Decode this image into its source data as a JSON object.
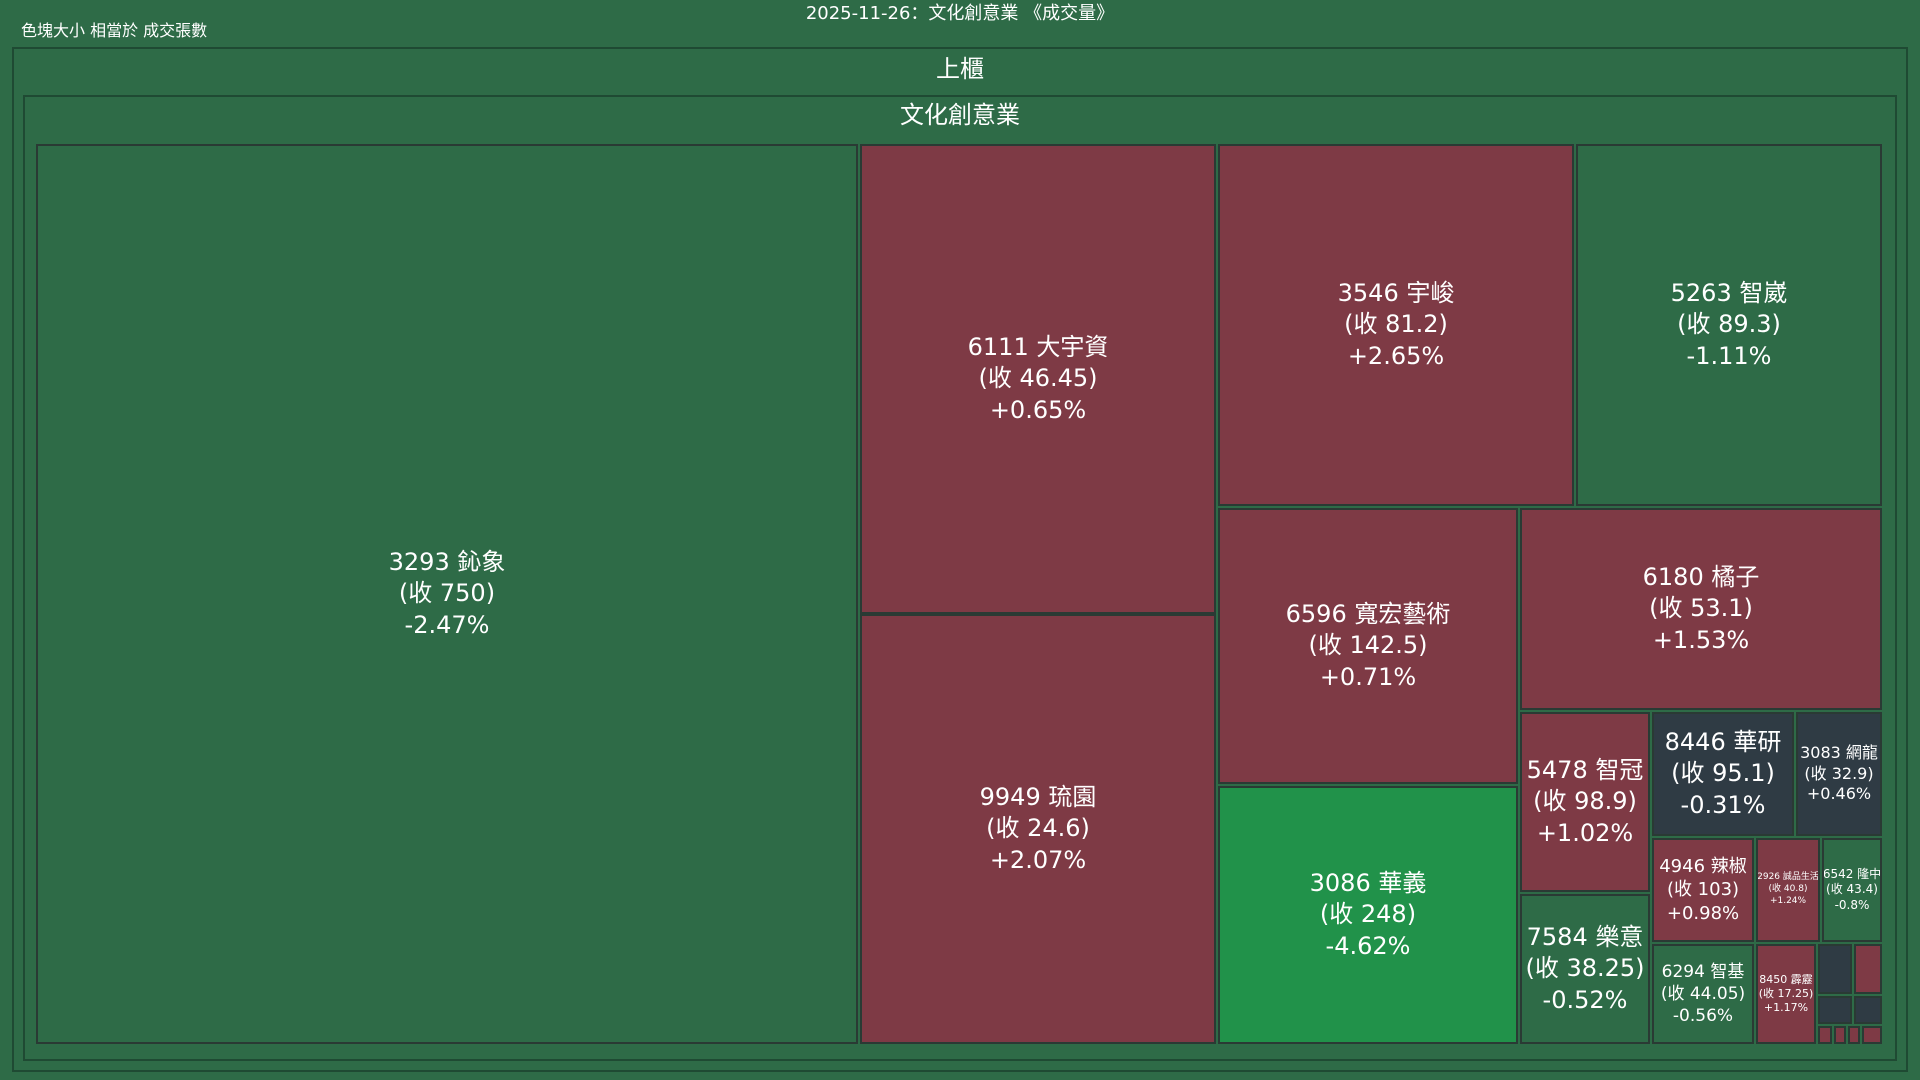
{
  "title": "2025-11-26：文化創意業 《成交量》",
  "caption": "色塊大小 相當於 成交張數",
  "colors": {
    "background": "#2e6b47",
    "up": "#7e3a45",
    "down": "#2e6b47",
    "strong_down": "#21924a",
    "flat": "#2f3b44"
  },
  "chart_data": {
    "type": "treemap",
    "title": "2025-11-26：文化創意業 《成交量》",
    "size_metric": "成交張數",
    "root": "上櫃",
    "group": "文化創意業",
    "nodes": [
      {
        "code": "3293",
        "name": "鈊象",
        "close": "750",
        "change": "-2.47%"
      },
      {
        "code": "6111",
        "name": "大宇資",
        "close": "46.45",
        "change": "+0.65%"
      },
      {
        "code": "9949",
        "name": "琉園",
        "close": "24.6",
        "change": "+2.07%"
      },
      {
        "code": "3546",
        "name": "宇峻",
        "close": "81.2",
        "change": "+2.65%"
      },
      {
        "code": "5263",
        "name": "智崴",
        "close": "89.3",
        "change": "-1.11%"
      },
      {
        "code": "6596",
        "name": "寬宏藝術",
        "close": "142.5",
        "change": "+0.71%"
      },
      {
        "code": "6180",
        "name": "橘子",
        "close": "53.1",
        "change": "+1.53%"
      },
      {
        "code": "3086",
        "name": "華義",
        "close": "248",
        "change": "-4.62%"
      },
      {
        "code": "5478",
        "name": "智冠",
        "close": "98.9",
        "change": "+1.02%"
      },
      {
        "code": "8446",
        "name": "華研",
        "close": "95.1",
        "change": "-0.31%"
      },
      {
        "code": "3083",
        "name": "網龍",
        "close": "32.9",
        "change": "+0.46%"
      },
      {
        "code": "7584",
        "name": "樂意",
        "close": "38.25",
        "change": "-0.52%"
      },
      {
        "code": "4946",
        "name": "辣椒",
        "close": "103",
        "change": "+0.98%"
      },
      {
        "code": "2926",
        "name": "誠品生活",
        "close": "40.8",
        "change": "+1.24%"
      },
      {
        "code": "6542",
        "name": "隆中",
        "close": "43.4",
        "change": "-0.8%"
      },
      {
        "code": "6294",
        "name": "智基",
        "close": "44.05",
        "change": "-0.56%"
      },
      {
        "code": "8450",
        "name": "霹靂",
        "close": "17.25",
        "change": "+1.17%"
      },
      {
        "code": "",
        "name": "",
        "close": "",
        "change": ""
      },
      {
        "code": "",
        "name": "",
        "close": "",
        "change": ""
      },
      {
        "code": "",
        "name": "",
        "close": "",
        "change": ""
      },
      {
        "code": "",
        "name": "",
        "close": "",
        "change": ""
      },
      {
        "code": "",
        "name": "",
        "close": "",
        "change": ""
      },
      {
        "code": "",
        "name": "",
        "close": "",
        "change": ""
      },
      {
        "code": "",
        "name": "",
        "close": "",
        "change": ""
      },
      {
        "code": "",
        "name": "",
        "close": "",
        "change": ""
      }
    ]
  }
}
